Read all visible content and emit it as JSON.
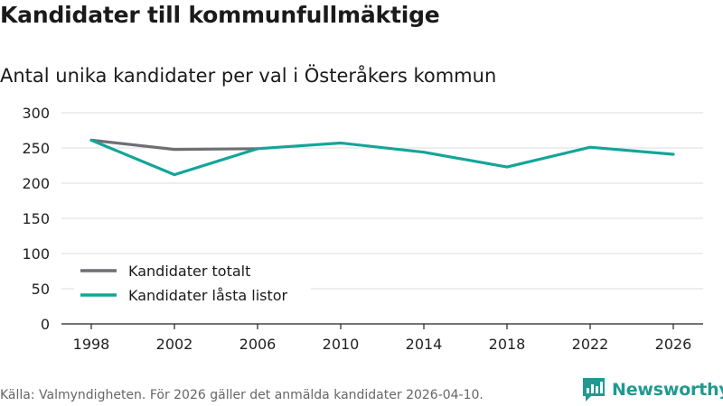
{
  "header": {
    "title": "Kandidater till kommunfullmäktige",
    "subtitle": "Antal unika kandidater per val i Österåkers kommun"
  },
  "footer": {
    "source": "Källa: Valmyndigheten. För 2026 gäller det anmälda kandidater 2026-04-10.",
    "brand": "Newsworthy"
  },
  "colors": {
    "totalt": "#6e6e73",
    "lasta": "#13a598",
    "grid": "#dcdcdc",
    "axis": "#222222",
    "brand": "#1f9a90"
  },
  "chart_data": {
    "type": "line",
    "title": "Kandidater till kommunfullmäktige",
    "subtitle": "Antal unika kandidater per val i Österåkers kommun",
    "xlabel": "",
    "ylabel": "",
    "x": [
      "1998",
      "2002",
      "2006",
      "2010",
      "2014",
      "2018",
      "2022",
      "2026"
    ],
    "ylim": [
      0,
      300
    ],
    "yticks": [
      "0",
      "50",
      "100",
      "150",
      "200",
      "250",
      "300"
    ],
    "grid": true,
    "legend": "bottom-left",
    "series": [
      {
        "name": "Kandidater totalt",
        "values": [
          261,
          248,
          249,
          null,
          null,
          null,
          null,
          null
        ]
      },
      {
        "name": "Kandidater låsta listor",
        "values": [
          261,
          212,
          249,
          257,
          244,
          223,
          251,
          241
        ]
      }
    ]
  }
}
